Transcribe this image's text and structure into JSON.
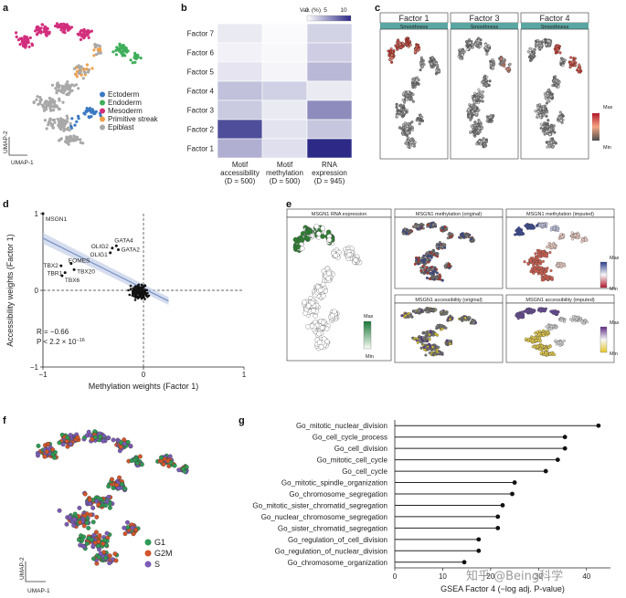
{
  "panels": {
    "a": {
      "letter": "a",
      "xlabel": "UMAP-1",
      "ylabel": "UMAP-2",
      "legend": [
        {
          "name": "Ectoderm",
          "color": "#3a78c2"
        },
        {
          "name": "Endoderm",
          "color": "#3fae5b"
        },
        {
          "name": "Mesoderm",
          "color": "#d22f7d"
        },
        {
          "name": "Primitive streak",
          "color": "#f0a04b"
        },
        {
          "name": "Epiblast",
          "color": "#a8a8a8"
        }
      ]
    },
    "b": {
      "letter": "b",
      "colorbar_title": "Var. (%)",
      "colorbar_ticks": [
        "0",
        "5",
        "10"
      ]
    },
    "c": {
      "letter": "c",
      "facets": [
        "Factor 1",
        "Factor 3",
        "Factor 4"
      ],
      "strip_label": "Smoothness",
      "legend_max": "Max",
      "legend_min": "Min"
    },
    "d": {
      "letter": "d",
      "stat_r": "R = −0.66",
      "stat_p": "P < 2.2 × 10",
      "stat_p_exp": "−16"
    },
    "e": {
      "letter": "e",
      "facets": [
        "MSGN1 RNA expression",
        "MSGN1 methylation (original)",
        "MSGN1 methylation (imputed)",
        "MSGN1 accessibility (original)",
        "MSGN1 accessibility (imputed)"
      ],
      "legend_max": "Max",
      "legend_min": "Min"
    },
    "f": {
      "letter": "f",
      "xlabel": "UMAP-1",
      "ylabel": "UMAP-2",
      "legend": [
        {
          "name": "G1",
          "color": "#2f9a55"
        },
        {
          "name": "G2M",
          "color": "#d2552a"
        },
        {
          "name": "S",
          "color": "#7b5bb5"
        }
      ]
    },
    "g": {
      "letter": "g"
    }
  },
  "watermark": "知乎 @Being科学",
  "chart_data": [
    {
      "panel": "b",
      "type": "heatmap",
      "rows": [
        "Factor 7",
        "Factor 6",
        "Factor 5",
        "Factor 4",
        "Factor 3",
        "Factor 2",
        "Factor 1"
      ],
      "columns": [
        "Motif\naccessibility\n(D = 500)",
        "Motif\nmethylation\n(D = 500)",
        "RNA\nexpression\n(D = 945)"
      ],
      "values": [
        [
          1.2,
          0.3,
          2.5
        ],
        [
          0.8,
          0.4,
          2.8
        ],
        [
          1.5,
          0.6,
          4.0
        ],
        [
          3.5,
          2.6,
          1.2
        ],
        [
          3.0,
          1.2,
          6.5
        ],
        [
          10.0,
          1.6,
          3.2
        ],
        [
          4.5,
          1.8,
          12.0
        ]
      ],
      "scale": [
        0,
        12
      ],
      "colorbar_ticks": [
        0,
        5,
        10
      ]
    },
    {
      "panel": "d",
      "type": "scatter",
      "xlabel": "Methylation weights (Factor 1)",
      "ylabel": "Accessibility weights (Factor 1)",
      "xlim": [
        -1,
        1
      ],
      "ylim": [
        -1,
        1
      ],
      "xticks": [
        -1,
        0,
        1
      ],
      "yticks": [
        -1,
        0,
        1
      ],
      "labeled_points": [
        {
          "label": "MSGN1",
          "x": -1.0,
          "y": 1.0
        },
        {
          "label": "GATA4",
          "x": -0.27,
          "y": 0.58
        },
        {
          "label": "OLIG2",
          "x": -0.31,
          "y": 0.55
        },
        {
          "label": "GATA2",
          "x": -0.25,
          "y": 0.53
        },
        {
          "label": "OLIG1",
          "x": -0.33,
          "y": 0.49
        },
        {
          "label": "EOMES",
          "x": -0.72,
          "y": 0.35
        },
        {
          "label": "TBX2",
          "x": -0.82,
          "y": 0.32
        },
        {
          "label": "TBX20",
          "x": -0.69,
          "y": 0.27
        },
        {
          "label": "TBR1",
          "x": -0.78,
          "y": 0.23
        },
        {
          "label": "TBX6",
          "x": -0.81,
          "y": 0.19
        }
      ],
      "fit": {
        "x": [
          -1.0,
          0.25
        ],
        "y": [
          0.68,
          -0.14
        ]
      }
    },
    {
      "panel": "g",
      "type": "bar",
      "xlabel": "GSEA Factor 4 (−log adj. P-value)",
      "xlim": [
        0,
        45
      ],
      "xticks": [
        0,
        10,
        20,
        30,
        40
      ],
      "categories": [
        "Go_mitotic_nuclear_division",
        "Go_cell_cycle_process",
        "Go_cell_division",
        "Go_mitotic_cell_cycle",
        "Go_cell_cycle",
        "Go_mitotic_spindle_organization",
        "Go_chromosome_segregation",
        "Go_mitotic_sister_chromatid_segregation",
        "Go_nuclear_chromosome_segregation",
        "Go_sister_chromatid_segregation",
        "Go_regulation_of_cell_division",
        "Go_regulation_of_nuclear_division",
        "Go_chromosome_organization"
      ],
      "values": [
        42.5,
        35.5,
        35.5,
        34.0,
        31.5,
        25.0,
        24.5,
        22.5,
        21.5,
        21.5,
        17.5,
        17.5,
        14.5
      ]
    }
  ]
}
